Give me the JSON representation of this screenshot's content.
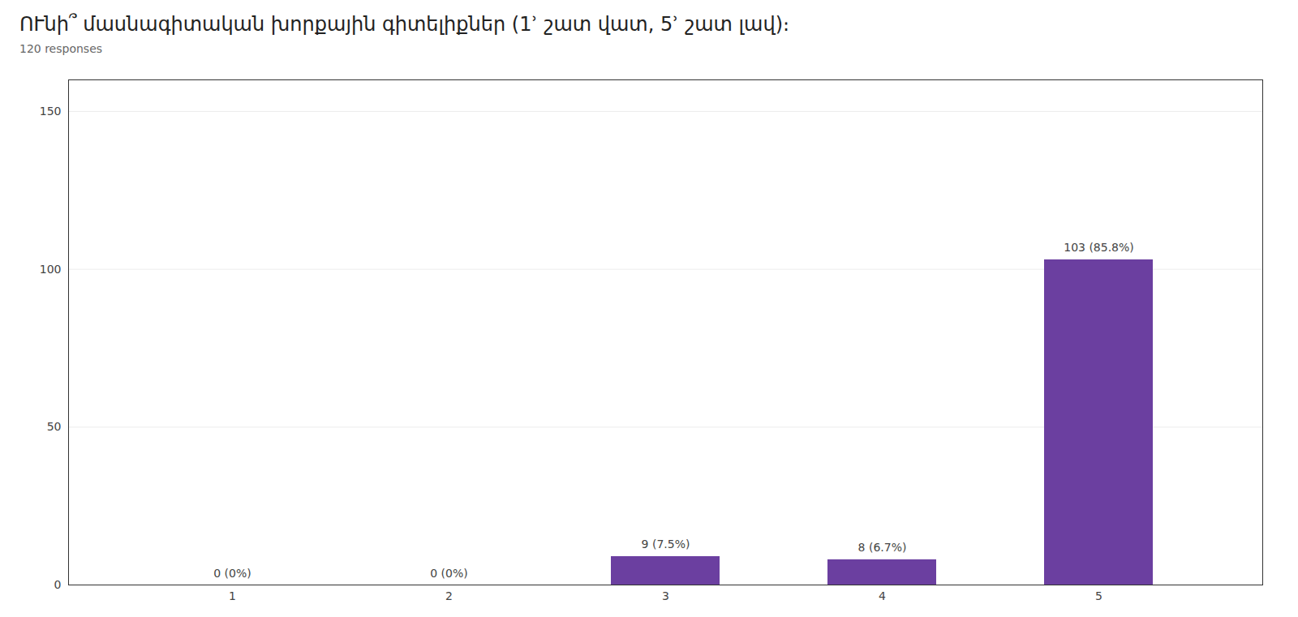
{
  "chart_data": {
    "type": "bar",
    "title": "ՈՒնի՞ մասնագիտական խորքային գիտելիքներ (1ʾ շատ վատ, 5ʾ շատ լավ)։",
    "subtitle": "120 responses",
    "categories": [
      "1",
      "2",
      "3",
      "4",
      "5"
    ],
    "values": [
      0,
      0,
      9,
      8,
      103
    ],
    "value_labels": [
      "0 (0%)",
      "0 (0%)",
      "9 (7.5%)",
      "8 (6.7%)",
      "103 (85.8%)"
    ],
    "data_labels": true,
    "color": "#6b3fa0",
    "ylim": [
      0,
      160
    ],
    "yticks": [
      0,
      50,
      100,
      150
    ],
    "grid": true
  }
}
